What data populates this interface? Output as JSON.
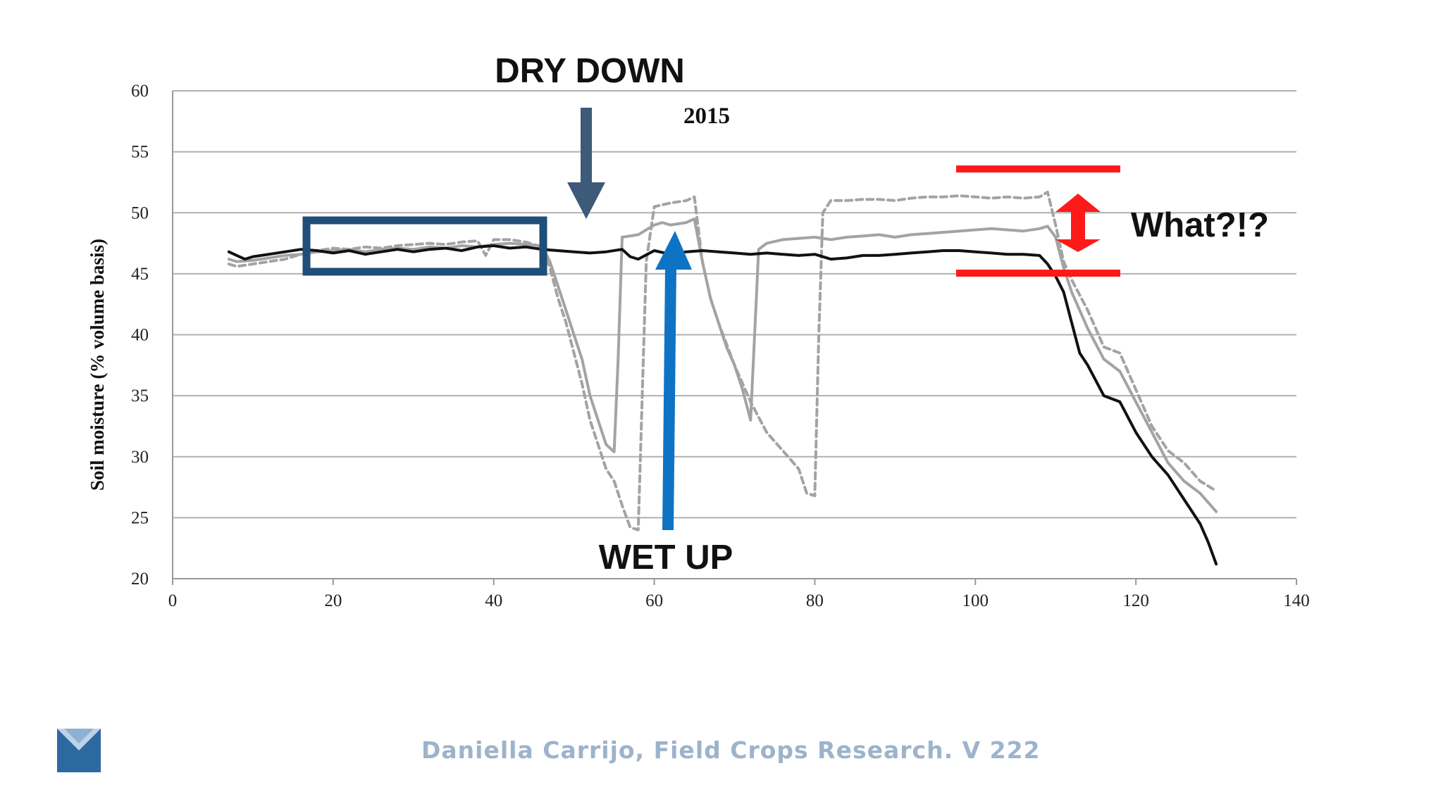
{
  "chart_data": {
    "type": "line",
    "title": "2015",
    "xlabel": "",
    "ylabel": "Soil moisture (% volume basis)",
    "xlim": [
      0,
      140
    ],
    "ylim": [
      20,
      60
    ],
    "xticks": [
      0,
      20,
      40,
      60,
      80,
      100,
      120,
      140
    ],
    "yticks": [
      20,
      25,
      30,
      35,
      40,
      45,
      50,
      55,
      60
    ],
    "grid": "horizontal",
    "legend": "none",
    "series": [
      {
        "style": "solid-black",
        "color": "#111111",
        "x": [
          7,
          8,
          9,
          10,
          12,
          14,
          16,
          18,
          20,
          22,
          24,
          26,
          28,
          30,
          32,
          34,
          36,
          38,
          40,
          42,
          44,
          46,
          48,
          50,
          52,
          54,
          56,
          57,
          58,
          60,
          62,
          64,
          66,
          68,
          70,
          72,
          74,
          76,
          78,
          80,
          82,
          84,
          86,
          88,
          90,
          92,
          94,
          96,
          98,
          100,
          102,
          104,
          106,
          108,
          109,
          110,
          111,
          112,
          113,
          114,
          116,
          118,
          120,
          122,
          124,
          126,
          128,
          129,
          130
        ],
        "y": [
          46.8,
          46.5,
          46.2,
          46.4,
          46.6,
          46.8,
          47.0,
          46.9,
          46.7,
          46.9,
          46.6,
          46.8,
          47.0,
          46.8,
          47.0,
          47.1,
          46.9,
          47.2,
          47.3,
          47.1,
          47.2,
          47.0,
          46.9,
          46.8,
          46.7,
          46.8,
          47.0,
          46.4,
          46.2,
          46.9,
          46.6,
          46.8,
          46.9,
          46.8,
          46.7,
          46.6,
          46.7,
          46.6,
          46.5,
          46.6,
          46.2,
          46.3,
          46.5,
          46.5,
          46.6,
          46.7,
          46.8,
          46.9,
          46.9,
          46.8,
          46.7,
          46.6,
          46.6,
          46.5,
          45.8,
          44.8,
          43.5,
          41.0,
          38.5,
          37.5,
          35.0,
          34.5,
          32.0,
          30.0,
          28.5,
          26.5,
          24.5,
          23.0,
          21.2
        ]
      },
      {
        "style": "solid-gray",
        "color": "#a3a3a3",
        "x": [
          7,
          8,
          10,
          12,
          14,
          16,
          18,
          20,
          22,
          24,
          26,
          28,
          30,
          32,
          34,
          36,
          38,
          40,
          42,
          44,
          46,
          47,
          48,
          49,
          50,
          51,
          52,
          53,
          54,
          55,
          55.5,
          56,
          57,
          58,
          60,
          61,
          62,
          64,
          65,
          66,
          67,
          68,
          69,
          70,
          71,
          72,
          72.5,
          73,
          74,
          76,
          78,
          80,
          82,
          84,
          86,
          88,
          90,
          92,
          94,
          96,
          98,
          100,
          102,
          104,
          106,
          108,
          109,
          110,
          111,
          112,
          114,
          116,
          118,
          120,
          122,
          124,
          126,
          128,
          130
        ],
        "y": [
          46.2,
          46.0,
          46.1,
          46.3,
          46.5,
          46.6,
          46.8,
          46.9,
          47.0,
          46.8,
          47.0,
          47.1,
          47.0,
          47.2,
          47.1,
          47.3,
          47.2,
          47.4,
          47.5,
          47.4,
          47.3,
          46.0,
          44.0,
          42.0,
          40.0,
          38.0,
          35.0,
          33.0,
          31.0,
          30.4,
          38.0,
          48.0,
          48.1,
          48.2,
          49.0,
          49.2,
          49.0,
          49.2,
          49.5,
          46.0,
          43.0,
          41.0,
          39.0,
          37.5,
          35.5,
          33.0,
          40.0,
          47.0,
          47.5,
          47.8,
          47.9,
          48.0,
          47.8,
          48.0,
          48.1,
          48.2,
          48.0,
          48.2,
          48.3,
          48.4,
          48.5,
          48.6,
          48.7,
          48.6,
          48.5,
          48.7,
          48.9,
          48.0,
          45.5,
          43.5,
          40.5,
          38.0,
          37.0,
          34.5,
          32.0,
          29.5,
          28.0,
          27.0,
          25.5
        ]
      },
      {
        "style": "dashed-gray",
        "color": "#a3a3a3",
        "x": [
          7,
          8,
          10,
          12,
          14,
          16,
          18,
          20,
          22,
          24,
          26,
          28,
          30,
          32,
          34,
          36,
          38,
          39,
          40,
          42,
          44,
          46,
          47,
          48,
          49,
          50,
          51,
          52,
          53,
          54,
          55,
          56,
          57,
          58,
          58.5,
          59,
          60,
          62,
          64,
          65,
          66,
          67,
          68,
          70,
          72,
          74,
          76,
          78,
          79,
          80,
          80.5,
          81,
          82,
          84,
          86,
          88,
          90,
          92,
          94,
          96,
          98,
          100,
          102,
          104,
          106,
          108,
          109,
          110,
          111,
          112,
          114,
          116,
          118,
          120,
          122,
          124,
          126,
          128,
          130
        ],
        "y": [
          45.8,
          45.6,
          45.8,
          46.0,
          46.2,
          46.6,
          46.9,
          47.1,
          47.0,
          47.2,
          47.1,
          47.3,
          47.4,
          47.5,
          47.4,
          47.6,
          47.7,
          46.5,
          47.8,
          47.8,
          47.6,
          47.2,
          45.5,
          43.0,
          41.0,
          38.5,
          36.0,
          33.0,
          31.0,
          29.0,
          28.0,
          26.0,
          24.2,
          24.0,
          35.0,
          46.0,
          50.5,
          50.8,
          51.0,
          51.3,
          46.0,
          43.0,
          41.0,
          37.5,
          34.5,
          32.0,
          30.5,
          29.0,
          27.0,
          26.8,
          40.0,
          50.0,
          51.0,
          51.0,
          51.1,
          51.1,
          51.0,
          51.2,
          51.3,
          51.3,
          51.4,
          51.3,
          51.2,
          51.3,
          51.2,
          51.3,
          51.7,
          49.0,
          46.0,
          44.5,
          42.0,
          39.0,
          38.5,
          35.5,
          32.5,
          30.5,
          29.5,
          28.0,
          27.2
        ]
      }
    ],
    "annotations": [
      {
        "text": "DRY DOWN"
      },
      {
        "text": "WET UP"
      },
      {
        "text": "What?!?"
      }
    ]
  },
  "footer": {
    "citation": "Daniella Carrijo, Field Crops Research.  V 222"
  },
  "colors": {
    "accent_navy": "#1f4e79",
    "arrow_slate": "#3d5a78",
    "arrow_blue": "#0f73c4",
    "alert_red": "#ff1a1a",
    "footer_text": "#9db3cb",
    "logo_blue": "#2d69a1"
  },
  "icons": [
    "slide-logo-icon"
  ]
}
